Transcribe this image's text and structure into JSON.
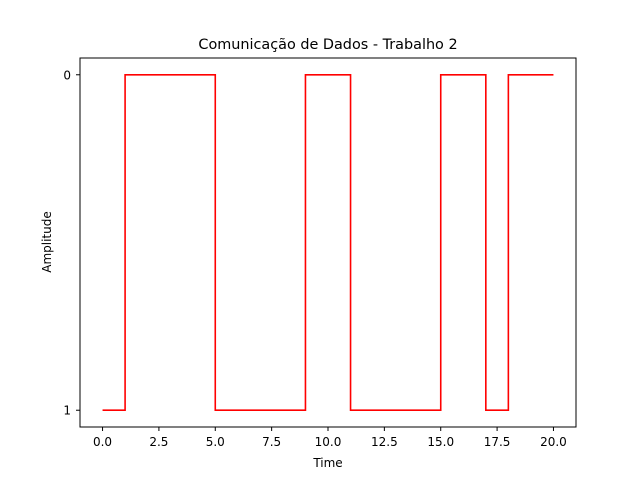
{
  "chart_data": {
    "type": "line",
    "title": "Comunicação de Dados - Trabalho 2",
    "xlabel": "Time",
    "ylabel": "Amplitude",
    "xlim": [
      -1,
      21
    ],
    "ylim": [
      1.05,
      -0.05
    ],
    "y_axis_inverted": true,
    "grid": false,
    "legend": "none",
    "x_ticks": [
      0,
      2.5,
      5,
      7.5,
      10,
      12.5,
      15,
      17.5,
      20
    ],
    "x_tick_labels": [
      "0.0",
      "2.5",
      "5.0",
      "7.5",
      "10.0",
      "12.5",
      "15.0",
      "17.5",
      "20.0"
    ],
    "y_ticks": [
      0,
      1
    ],
    "y_tick_labels": [
      "0",
      "1"
    ],
    "series": [
      {
        "style": "step",
        "color": "#ff0000",
        "x": [
          0,
          1,
          1,
          5,
          5,
          9,
          9,
          11,
          11,
          15,
          15,
          17,
          17,
          18,
          18,
          20
        ],
        "y": [
          1,
          1,
          0,
          0,
          1,
          1,
          0,
          0,
          1,
          1,
          0,
          0,
          1,
          1,
          0,
          0
        ]
      }
    ]
  }
}
